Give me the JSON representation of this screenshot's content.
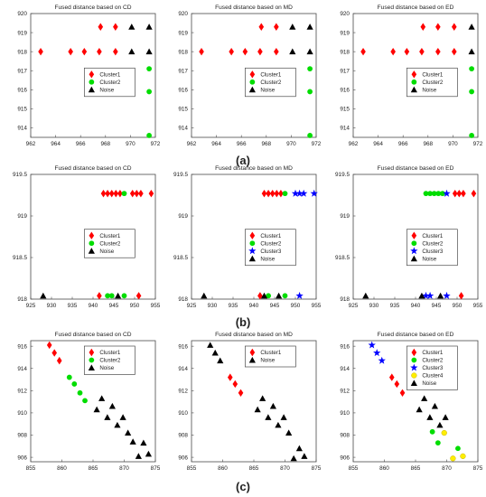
{
  "labels": {
    "a": "(a)",
    "b": "(b)",
    "c": "(c)"
  },
  "colors": {
    "Cluster1": "#ff0000",
    "Cluster2": "#00dd00",
    "Cluster3": "#0000ff",
    "Cluster4": "#ffee00",
    "Noise": "#000000"
  },
  "markers": {
    "Cluster1": "diamond",
    "Cluster2": "circle",
    "Cluster3": "star",
    "Cluster4": "circle",
    "Noise": "triangle"
  },
  "chart_data": [
    {
      "type": "scatter",
      "row": "a",
      "col": 0,
      "title": "Fused distance based on CD",
      "xlim": [
        962,
        972
      ],
      "ylim": [
        913.5,
        920
      ],
      "xticks": [
        962,
        964,
        966,
        968,
        970,
        972
      ],
      "yticks": [
        914,
        915,
        916,
        917,
        918,
        919,
        920
      ],
      "legend": [
        "Cluster1",
        "Cluster2",
        "Noise"
      ],
      "series": [
        {
          "name": "Cluster1",
          "x": [
            962.8,
            965.2,
            966.3,
            967.5,
            967.6,
            968.8,
            968.8
          ],
          "y": [
            918,
            918,
            918,
            918,
            919.3,
            919.3,
            918
          ]
        },
        {
          "name": "Cluster2",
          "x": [
            971.5,
            971.5,
            971.5
          ],
          "y": [
            917.1,
            915.9,
            913.6
          ]
        },
        {
          "name": "Noise",
          "x": [
            970.1,
            970.1,
            971.5,
            971.5
          ],
          "y": [
            918,
            919.3,
            919.3,
            918
          ]
        }
      ]
    },
    {
      "type": "scatter",
      "row": "a",
      "col": 1,
      "title": "Fused distance based on MD",
      "xlim": [
        962,
        972
      ],
      "ylim": [
        913.5,
        920
      ],
      "xticks": [
        962,
        964,
        966,
        968,
        970,
        972
      ],
      "yticks": [
        914,
        915,
        916,
        917,
        918,
        919,
        920
      ],
      "legend": [
        "Cluster1",
        "Cluster2",
        "Noise"
      ],
      "series": [
        {
          "name": "Cluster1",
          "x": [
            962.8,
            965.2,
            966.3,
            967.5,
            967.6,
            968.8,
            968.8
          ],
          "y": [
            918,
            918,
            918,
            918,
            919.3,
            919.3,
            918
          ]
        },
        {
          "name": "Cluster2",
          "x": [
            971.5,
            971.5,
            971.5
          ],
          "y": [
            917.1,
            915.9,
            913.6
          ]
        },
        {
          "name": "Noise",
          "x": [
            970.1,
            970.1,
            971.5,
            971.5
          ],
          "y": [
            918,
            919.3,
            919.3,
            918
          ]
        }
      ]
    },
    {
      "type": "scatter",
      "row": "a",
      "col": 2,
      "title": "Fused distance based on ED",
      "xlim": [
        962,
        972
      ],
      "ylim": [
        913.5,
        920
      ],
      "xticks": [
        962,
        964,
        966,
        968,
        970,
        972
      ],
      "yticks": [
        914,
        915,
        916,
        917,
        918,
        919,
        920
      ],
      "legend": [
        "Cluster1",
        "Cluster2",
        "Noise"
      ],
      "series": [
        {
          "name": "Cluster1",
          "x": [
            962.8,
            965.2,
            966.3,
            967.5,
            967.6,
            968.8,
            968.8,
            970.1,
            970.1
          ],
          "y": [
            918,
            918,
            918,
            918,
            919.3,
            919.3,
            918,
            919.3,
            918
          ]
        },
        {
          "name": "Cluster2",
          "x": [
            971.5,
            971.5,
            971.5
          ],
          "y": [
            917.1,
            915.9,
            913.6
          ]
        },
        {
          "name": "Noise",
          "x": [
            971.5,
            971.5
          ],
          "y": [
            919.3,
            918
          ]
        }
      ]
    },
    {
      "type": "scatter",
      "row": "b",
      "col": 0,
      "title": "Fused distance based on CD",
      "xlim": [
        925,
        955
      ],
      "ylim": [
        918,
        919.5
      ],
      "xticks": [
        925,
        930,
        935,
        940,
        945,
        950,
        955
      ],
      "yticks": [
        918,
        918.5,
        919,
        919.5
      ],
      "legend": [
        "Cluster1",
        "Cluster2",
        "Noise"
      ],
      "series": [
        {
          "name": "Cluster1",
          "x": [
            942.5,
            943.5,
            944.5,
            945.5,
            946.5,
            949.5,
            950.5,
            951.5,
            954,
            941.5,
            951
          ],
          "y": [
            919.27,
            919.27,
            919.27,
            919.27,
            919.27,
            919.27,
            919.27,
            919.27,
            919.27,
            918.04,
            918.04
          ]
        },
        {
          "name": "Cluster2",
          "x": [
            947.5,
            943.5,
            944.5,
            947.5
          ],
          "y": [
            919.27,
            918.04,
            918.04,
            918.04
          ]
        },
        {
          "name": "Noise",
          "x": [
            928,
            946
          ],
          "y": [
            918.04,
            918.04
          ]
        }
      ]
    },
    {
      "type": "scatter",
      "row": "b",
      "col": 1,
      "title": "Fused distance based on MD",
      "xlim": [
        925,
        955
      ],
      "ylim": [
        918,
        919.5
      ],
      "xticks": [
        925,
        930,
        935,
        940,
        945,
        950,
        955
      ],
      "yticks": [
        918,
        918.5,
        919,
        919.5
      ],
      "legend": [
        "Cluster1",
        "Cluster2",
        "Cluster3",
        "Noise"
      ],
      "series": [
        {
          "name": "Cluster1",
          "x": [
            942.5,
            943.5,
            944.5,
            945.5,
            946.5,
            941.5
          ],
          "y": [
            919.27,
            919.27,
            919.27,
            919.27,
            919.27,
            918.04
          ]
        },
        {
          "name": "Cluster2",
          "x": [
            947.5,
            943.5,
            947.5
          ],
          "y": [
            919.27,
            918.04,
            918.04
          ]
        },
        {
          "name": "Cluster3",
          "x": [
            950,
            951,
            952,
            954.5,
            951
          ],
          "y": [
            919.27,
            919.27,
            919.27,
            919.27,
            918.04
          ]
        },
        {
          "name": "Noise",
          "x": [
            928,
            942.5,
            946
          ],
          "y": [
            918.04,
            918.04,
            918.04
          ]
        }
      ]
    },
    {
      "type": "scatter",
      "row": "b",
      "col": 2,
      "title": "Fused distance based on ED",
      "xlim": [
        925,
        955
      ],
      "ylim": [
        918,
        919.5
      ],
      "xticks": [
        925,
        930,
        935,
        940,
        945,
        950,
        955
      ],
      "yticks": [
        918,
        918.5,
        919,
        919.5
      ],
      "legend": [
        "Cluster1",
        "Cluster2",
        "Cluster3",
        "Noise"
      ],
      "series": [
        {
          "name": "Cluster1",
          "x": [
            949.5,
            950.5,
            951.5,
            954,
            951
          ],
          "y": [
            919.27,
            919.27,
            919.27,
            919.27,
            918.04
          ]
        },
        {
          "name": "Cluster2",
          "x": [
            942.5,
            943.5,
            944.5,
            945.5,
            946.5
          ],
          "y": [
            919.27,
            919.27,
            919.27,
            919.27,
            919.27
          ]
        },
        {
          "name": "Cluster3",
          "x": [
            947.5,
            942.5,
            943.5,
            947.5
          ],
          "y": [
            919.27,
            918.04,
            918.04,
            918.04
          ]
        },
        {
          "name": "Noise",
          "x": [
            928,
            941.5,
            946
          ],
          "y": [
            918.04,
            918.04,
            918.04
          ]
        }
      ]
    },
    {
      "type": "scatter",
      "row": "c",
      "col": 0,
      "title": "Fused distance based on CD",
      "xlim": [
        855,
        875
      ],
      "ylim": [
        905.6,
        916.5
      ],
      "xticks": [
        855,
        860,
        865,
        870,
        875
      ],
      "yticks": [
        906,
        908,
        910,
        912,
        914,
        916
      ],
      "legend": [
        "Cluster1",
        "Cluster2",
        "Noise"
      ],
      "series": [
        {
          "name": "Cluster1",
          "x": [
            858,
            858.8,
            859.6
          ],
          "y": [
            916.1,
            915.4,
            914.7
          ]
        },
        {
          "name": "Cluster2",
          "x": [
            861.2,
            862,
            862.9,
            863.7
          ],
          "y": [
            913.2,
            912.6,
            911.8,
            911.1
          ]
        },
        {
          "name": "Noise",
          "x": [
            865.6,
            866.4,
            867.3,
            868.1,
            868.9,
            869.8,
            870.6,
            871.4,
            872.3,
            873.1,
            873.9
          ],
          "y": [
            910.3,
            911.3,
            909.6,
            910.6,
            908.9,
            909.6,
            908.2,
            907.4,
            906.1,
            907.3,
            906.3
          ]
        }
      ]
    },
    {
      "type": "scatter",
      "row": "c",
      "col": 1,
      "title": "Fused distance based on MD",
      "xlim": [
        855,
        875
      ],
      "ylim": [
        905.6,
        916.5
      ],
      "xticks": [
        855,
        860,
        865,
        870,
        875
      ],
      "yticks": [
        906,
        908,
        910,
        912,
        914,
        916
      ],
      "legend": [
        "Cluster1",
        "Noise"
      ],
      "series": [
        {
          "name": "Cluster1",
          "x": [
            861.2,
            862,
            862.9
          ],
          "y": [
            913.2,
            912.6,
            911.8
          ]
        },
        {
          "name": "Noise",
          "x": [
            858,
            858.8,
            859.6,
            865.6,
            866.4,
            867.3,
            868.1,
            868.9,
            869.8,
            870.6,
            871.4,
            872.3,
            873.1
          ],
          "y": [
            916.1,
            915.4,
            914.7,
            910.3,
            911.3,
            909.6,
            910.6,
            908.9,
            909.6,
            908.2,
            905.9,
            906.8,
            906.1
          ]
        }
      ]
    },
    {
      "type": "scatter",
      "row": "c",
      "col": 2,
      "title": "Fused distance based on ED",
      "xlim": [
        855,
        875
      ],
      "ylim": [
        905.6,
        916.5
      ],
      "xticks": [
        855,
        860,
        865,
        870,
        875
      ],
      "yticks": [
        906,
        908,
        910,
        912,
        914,
        916
      ],
      "legend": [
        "Cluster1",
        "Cluster2",
        "Cluster3",
        "Cluster4",
        "Noise"
      ],
      "series": [
        {
          "name": "Cluster1",
          "x": [
            861.2,
            862,
            862.9
          ],
          "y": [
            913.2,
            912.6,
            911.8
          ]
        },
        {
          "name": "Cluster2",
          "x": [
            867.7,
            868.6,
            871.8
          ],
          "y": [
            908.3,
            907.3,
            906.8
          ]
        },
        {
          "name": "Cluster3",
          "x": [
            858,
            858.8,
            859.6
          ],
          "y": [
            916.1,
            915.4,
            914.7
          ]
        },
        {
          "name": "Cluster4",
          "x": [
            869.6,
            871,
            872.6
          ],
          "y": [
            908.2,
            905.9,
            906.1
          ]
        },
        {
          "name": "Noise",
          "x": [
            865.6,
            866.4,
            867.3,
            868.1,
            868.9,
            869.8
          ],
          "y": [
            910.3,
            911.3,
            909.6,
            910.6,
            908.9,
            909.6
          ]
        }
      ]
    }
  ]
}
